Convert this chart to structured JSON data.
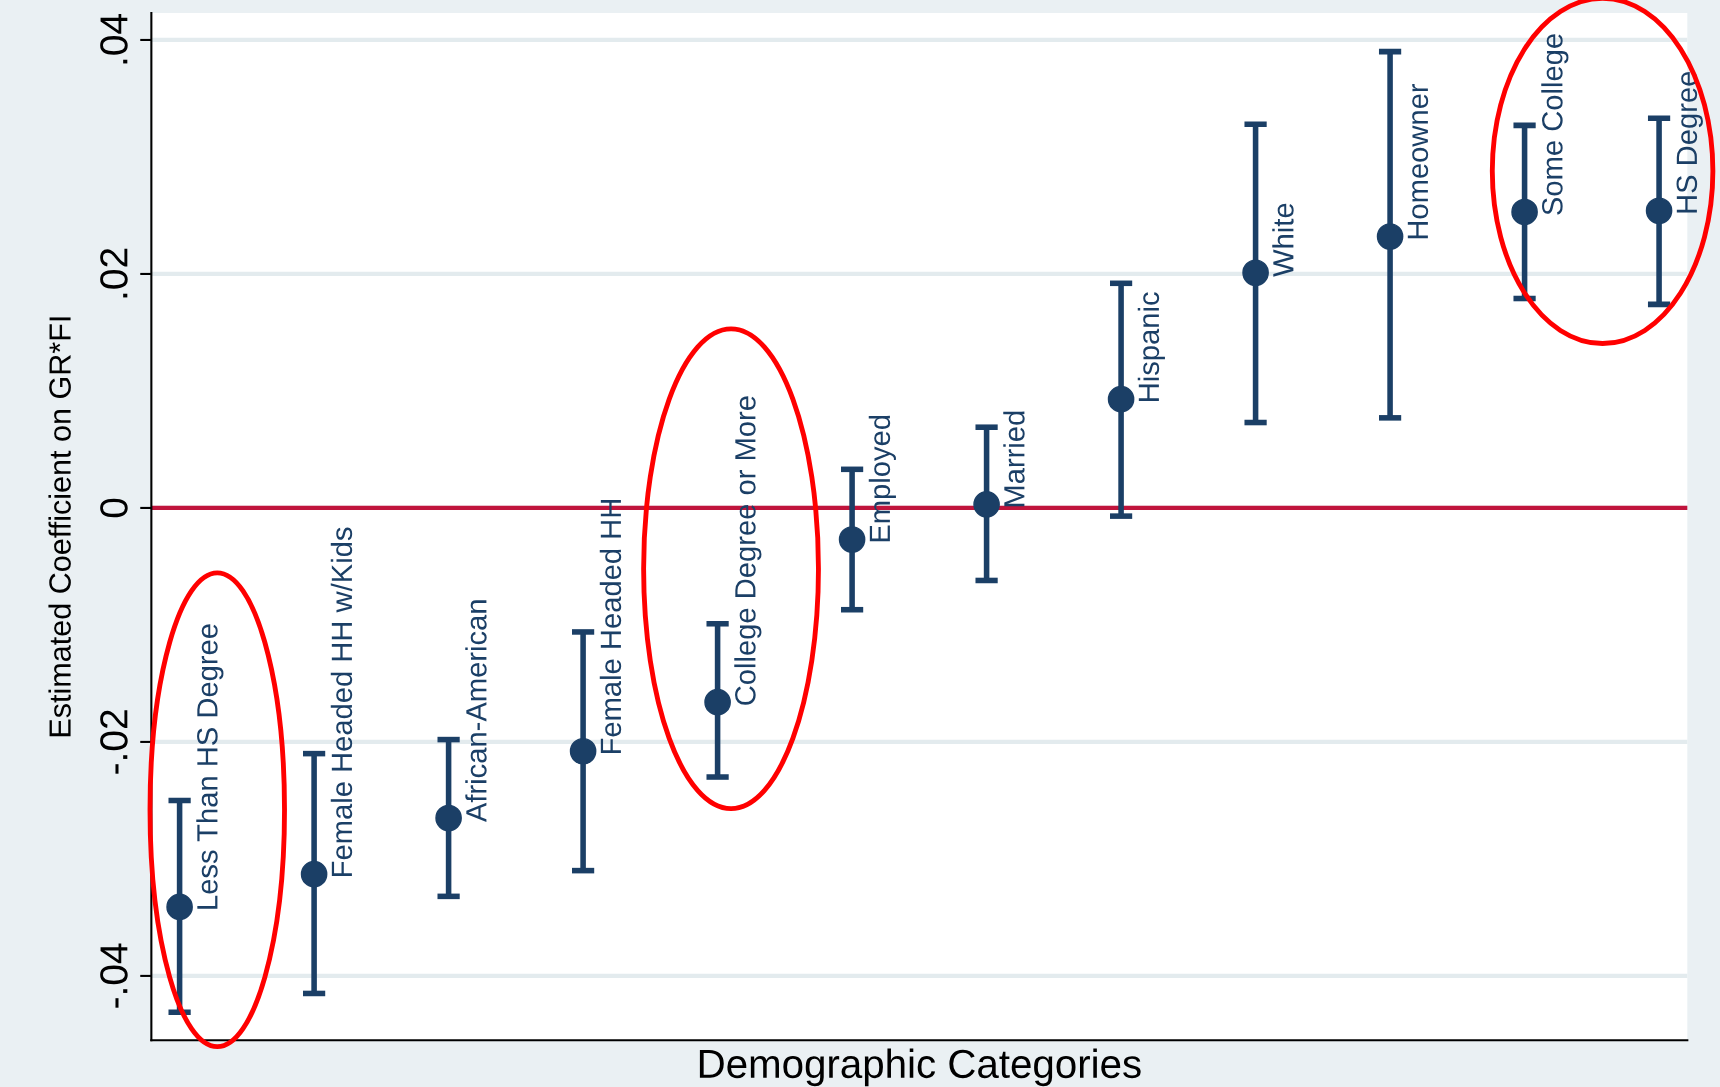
{
  "chart_data": {
    "type": "scatter",
    "xlabel": "Demographic Categories",
    "ylabel": "Estimated Coefficient on GR*FI",
    "categories": [
      "Less Than HS Degree",
      "Female Headed HH w/Kids",
      "African-American",
      "Female Headed HH",
      "College Degree or More",
      "Employed",
      "Married",
      "Hispanic",
      "White",
      "Homeowner",
      "Some College",
      "HS Degree"
    ],
    "series": [
      {
        "color": "#1b3f66",
        "values": [
          -0.0341,
          -0.0313,
          -0.0265,
          -0.0208,
          -0.0166,
          -0.0027,
          0.0003,
          0.0093,
          0.0201,
          0.0232,
          0.0253,
          0.0254
        ],
        "errors": [
          [
            -0.0431,
            -0.025
          ],
          [
            -0.0415,
            -0.021
          ],
          [
            -0.0332,
            -0.0198
          ],
          [
            -0.031,
            -0.0106
          ],
          [
            -0.023,
            -0.0099
          ],
          [
            -0.0087,
            0.0033
          ],
          [
            -0.0062,
            0.0069
          ],
          [
            -0.0007,
            0.0192
          ],
          [
            0.0073,
            0.0328
          ],
          [
            0.0077,
            0.039
          ],
          [
            0.0179,
            0.0327
          ],
          [
            0.0174,
            0.0333
          ]
        ]
      }
    ],
    "ylim": [
      -0.0455,
      0.0423
    ],
    "yticks": [
      {
        "value": -0.04,
        "label": "-.04"
      },
      {
        "value": -0.02,
        "label": "-.02"
      },
      0,
      {
        "value": 0.02,
        "label": ".02"
      },
      {
        "value": 0.04,
        "label": ".04"
      }
    ],
    "ref_lines": [
      {
        "axis": "y",
        "value": 0,
        "color": "#c0143c"
      }
    ],
    "grid": "y",
    "marker": "circle",
    "tick_labels": "y"
  }
}
